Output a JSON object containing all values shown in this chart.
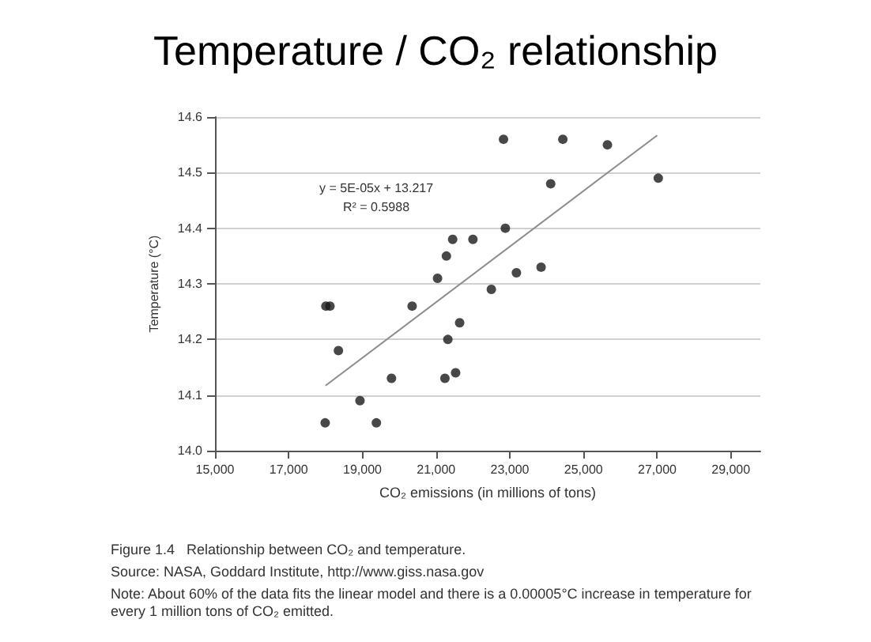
{
  "chart_data": {
    "type": "scatter",
    "title": "Temperature / CO₂ relationship",
    "xlabel": "CO₂ emissions (in millions of tons)",
    "ylabel": "Temperature (°C)",
    "series": [
      {
        "color": "#1a1a1a",
        "marker": "circle",
        "x": [
          17990,
          18010,
          18120,
          18350,
          18935,
          19380,
          19790,
          20350,
          21040,
          21240,
          21280,
          21320,
          21450,
          21530,
          21640,
          22000,
          22500,
          22830,
          22880,
          23180,
          23850,
          24110,
          24440,
          25650,
          27030
        ],
        "values": [
          14.05,
          14.26,
          14.26,
          14.18,
          14.09,
          14.05,
          14.13,
          14.26,
          14.31,
          14.13,
          14.35,
          14.2,
          14.38,
          14.14,
          14.23,
          14.38,
          14.29,
          14.56,
          14.4,
          14.32,
          14.33,
          14.48,
          14.56,
          14.55,
          14.49
        ]
      },
      {
        "type": "line",
        "color": "#8c8c8c",
        "marker": "none",
        "x": [
          18000,
          27000
        ],
        "values": [
          14.117,
          14.567
        ]
      }
    ],
    "xlim": [
      15000,
      29800
    ],
    "ylim": [
      14.0,
      14.6
    ],
    "xticks": [
      {
        "value": 15000,
        "label": "15,000"
      },
      {
        "value": 17000,
        "label": "17,000"
      },
      {
        "value": 19000,
        "label": "19,000"
      },
      {
        "value": 21000,
        "label": "21,000"
      },
      {
        "value": 23000,
        "label": "23,000"
      },
      {
        "value": 25000,
        "label": "25,000"
      },
      {
        "value": 27000,
        "label": "27,000"
      },
      {
        "value": 29000,
        "label": "29,000"
      }
    ],
    "yticks": [
      {
        "value": 14,
        "label": "14.0"
      },
      14.1,
      14.2,
      14.3,
      14.4,
      14.5,
      14.6
    ],
    "grid": "y",
    "annotations": [
      "y = 5E-05x + 13.217",
      "R² = 0.5988",
      "Figure 1.4   Relationship between CO₂ and temperature.",
      "Source: NASA, Goddard Institute, http://www.giss.nasa.gov",
      "Note: About 60% of the data fits the linear model and there is a 0.00005°C increase in temperature for every 1 million tons of CO₂ emitted."
    ]
  }
}
